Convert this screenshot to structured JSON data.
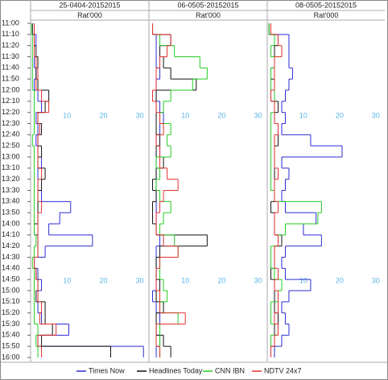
{
  "chart_data": {
    "type": "step",
    "xlabel": "Rat'000",
    "categories": [
      "11:00",
      "11:10",
      "11:20",
      "11:30",
      "11:40",
      "11:50",
      "12:00",
      "12:10",
      "12:20",
      "12:30",
      "12:40",
      "12:50",
      "13:00",
      "13:10",
      "13:20",
      "13:30",
      "13:40",
      "13:50",
      "14:00",
      "14:10",
      "14:20",
      "14:30",
      "14:40",
      "14:50",
      "15:00",
      "15:10",
      "15:20",
      "15:30",
      "15:40",
      "15:50",
      "16:00"
    ],
    "panels": [
      {
        "title": "25-0404-20152015"
      },
      {
        "title": "06-0505-20152015"
      },
      {
        "title": "08-0505-20152015"
      }
    ],
    "xlim": [
      0,
      32.5
    ],
    "xticks": [
      10,
      20,
      30
    ],
    "series": [
      {
        "name": "Times Now",
        "color": "#2b2bd6",
        "values": [
          [
            1,
            1.5,
            1,
            1,
            1.5,
            1,
            2,
            3,
            1.5,
            2,
            1.5,
            2,
            3,
            2,
            2,
            3,
            11,
            8,
            5,
            17,
            4,
            1,
            2,
            3,
            2,
            2,
            3,
            10.5,
            2,
            31,
            null
          ],
          [
            1,
            2,
            2,
            2,
            3,
            2,
            2,
            3,
            4,
            3,
            2,
            3,
            2,
            2,
            2,
            2,
            2,
            2,
            2,
            3,
            2,
            2,
            2,
            2,
            1,
            2,
            3,
            2,
            3,
            2,
            null
          ],
          [
            1,
            6,
            6,
            6,
            7,
            6,
            5,
            4,
            5,
            4,
            12,
            20.7,
            4,
            6,
            5,
            4,
            5,
            13.5,
            10,
            15,
            5,
            4,
            5,
            12,
            6,
            4,
            5,
            6,
            4,
            2,
            null
          ]
        ]
      },
      {
        "name": "Headlines Today",
        "color": "#111111",
        "values": [
          [
            0.5,
            1,
            1.5,
            2,
            1.5,
            2,
            5,
            4,
            2,
            3,
            2,
            3,
            2,
            4,
            3,
            2,
            2,
            2,
            1,
            2,
            2,
            1,
            1.5,
            2,
            1.5,
            4,
            4,
            6,
            3,
            22,
            null
          ],
          [
            1,
            6,
            3,
            4,
            6,
            13,
            2,
            2,
            2,
            2,
            3,
            2,
            4,
            2,
            1,
            2,
            1,
            1,
            2,
            16,
            3,
            2,
            2,
            3,
            2,
            4,
            2,
            2,
            4,
            6,
            null
          ],
          [
            0.5,
            3,
            2,
            2,
            1,
            2,
            1,
            3,
            2,
            3,
            3,
            2,
            2,
            2,
            2,
            2,
            1,
            2,
            2,
            4,
            2,
            2,
            1,
            2,
            2,
            2,
            3,
            2,
            2,
            1,
            null
          ]
        ]
      },
      {
        "name": "CNN IBN",
        "color": "#22cc22",
        "values": [
          [
            0.3,
            0.5,
            0.5,
            0.5,
            0.5,
            0.5,
            1,
            1,
            1,
            1,
            0.5,
            1,
            1,
            1,
            1,
            1,
            1,
            1,
            1,
            1.5,
            1,
            0.5,
            1,
            1,
            1,
            1,
            1,
            2,
            1.5,
            2,
            null
          ],
          [
            1,
            3,
            7,
            14,
            16,
            12,
            6,
            4,
            3,
            6,
            5,
            6,
            2,
            3,
            2,
            3,
            6,
            4,
            3,
            7,
            8,
            3,
            3,
            4,
            5,
            3,
            8,
            3,
            3,
            3,
            null
          ],
          [
            0.5,
            2,
            1,
            2,
            1,
            1,
            2,
            2,
            1,
            1,
            1,
            1,
            1,
            1,
            1,
            2,
            15,
            14,
            5,
            3,
            1,
            1,
            2,
            4,
            3,
            1,
            1,
            3,
            1,
            1,
            null
          ]
        ]
      },
      {
        "name": "NDTV 24x7",
        "color": "#e03030",
        "values": [
          [
            1,
            1,
            1,
            1.5,
            2,
            1.5,
            3,
            5,
            2,
            2.5,
            2,
            2,
            2,
            3,
            2,
            2,
            3,
            2,
            2,
            2,
            2,
            1,
            1.5,
            2,
            2,
            3,
            2.5,
            7,
            2,
            3,
            null
          ],
          [
            1,
            6,
            5,
            3,
            2,
            2,
            1,
            2,
            3,
            4,
            2,
            3,
            3,
            5,
            8,
            4,
            3,
            2,
            2,
            4,
            8,
            3,
            2,
            2,
            3,
            3,
            10,
            2,
            2,
            3,
            null
          ],
          [
            1,
            3,
            4,
            2,
            2,
            2,
            1,
            2,
            2,
            3,
            2,
            2,
            2,
            3,
            2,
            2,
            3,
            2,
            2,
            3,
            2,
            2,
            3,
            2,
            3,
            3,
            2,
            3,
            2,
            1,
            null
          ]
        ]
      }
    ]
  }
}
